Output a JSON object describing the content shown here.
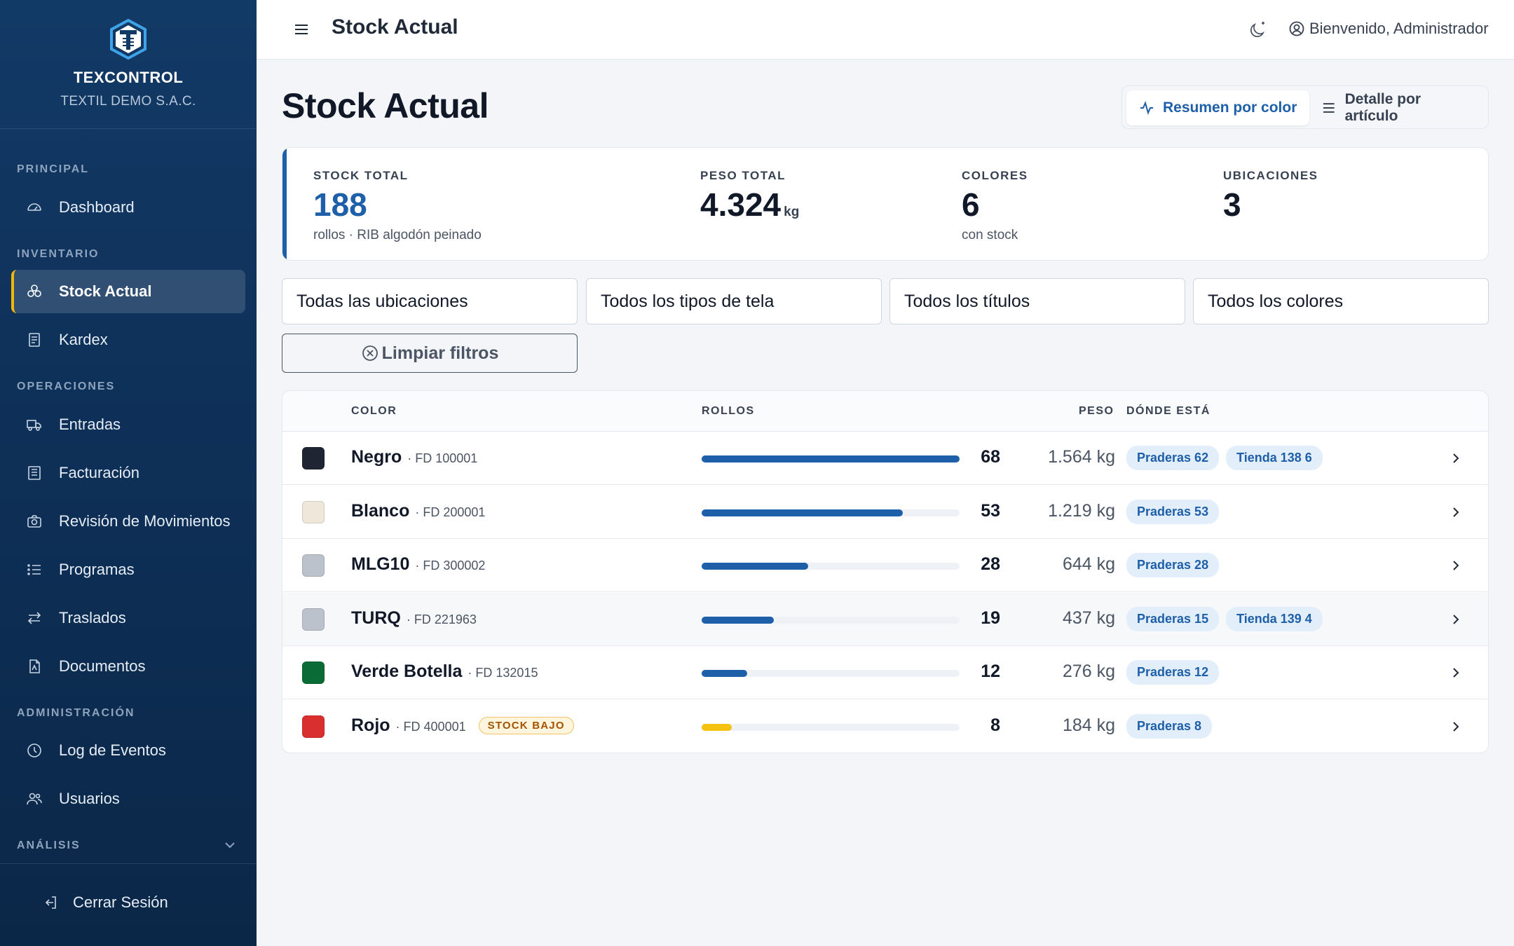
{
  "brand": {
    "name": "TEXCONTROL",
    "company": "TEXTIL DEMO S.A.C."
  },
  "sidebar": {
    "sections": {
      "principal": "PRINCIPAL",
      "inventario": "INVENTARIO",
      "operaciones": "OPERACIONES",
      "administracion": "ADMINISTRACIÓN",
      "analisis": "ANÁLISIS"
    },
    "items": {
      "dashboard": "Dashboard",
      "stock_actual": "Stock Actual",
      "kardex": "Kardex",
      "entradas": "Entradas",
      "facturacion": "Facturación",
      "revision": "Revisión de Movimientos",
      "programas": "Programas",
      "traslados": "Traslados",
      "documentos": "Documentos",
      "log": "Log de Eventos",
      "usuarios": "Usuarios"
    },
    "logout": "Cerrar Sesión"
  },
  "header": {
    "title": "Stock Actual",
    "welcome": "Bienvenido, Administrador"
  },
  "main": {
    "title": "Stock Actual",
    "view_toggle": {
      "summary": "Resumen por color",
      "detail": "Detalle por artículo",
      "active": "summary"
    },
    "stats": {
      "stock_total": {
        "label": "STOCK TOTAL",
        "value": "188",
        "sub": "rollos · RIB algodón peinado"
      },
      "peso_total": {
        "label": "PESO TOTAL",
        "value": "4.324",
        "unit": "kg"
      },
      "colores": {
        "label": "COLORES",
        "value": "6",
        "sub": "con stock"
      },
      "ubicaciones": {
        "label": "UBICACIONES",
        "value": "3"
      }
    },
    "filters": {
      "ubicaciones": "Todas las ubicaciones",
      "tipos": "Todos los tipos de tela",
      "titulos": "Todos los títulos",
      "colores": "Todos los colores",
      "clear": "Limpiar filtros"
    },
    "table": {
      "headers": {
        "color": "COLOR",
        "rollos": "ROLLOS",
        "peso": "PESO",
        "donde": "DÓNDE ESTÁ"
      },
      "max_rollos": 68,
      "rows": [
        {
          "name": "Negro",
          "code": "· FD 100001",
          "swatch": "#1f2533",
          "rollos": "68",
          "rollos_num": 68,
          "peso": "1.564 kg",
          "locations": [
            "Praderas 62",
            "Tienda 138 6"
          ],
          "badge": ""
        },
        {
          "name": "Blanco",
          "code": "· FD 200001",
          "swatch": "#efe8da",
          "rollos": "53",
          "rollos_num": 53,
          "peso": "1.219 kg",
          "locations": [
            "Praderas 53"
          ],
          "badge": ""
        },
        {
          "name": "MLG10",
          "code": "· FD 300002",
          "swatch": "#bcc2cc",
          "rollos": "28",
          "rollos_num": 28,
          "peso": "644 kg",
          "locations": [
            "Praderas 28"
          ],
          "badge": ""
        },
        {
          "name": "TURQ",
          "code": "· FD 221963",
          "swatch": "#bcc2cc",
          "rollos": "19",
          "rollos_num": 19,
          "peso": "437 kg",
          "locations": [
            "Praderas 15",
            "Tienda 139 4"
          ],
          "badge": ""
        },
        {
          "name": "Verde Botella",
          "code": "· FD 132015",
          "swatch": "#0b6b35",
          "rollos": "12",
          "rollos_num": 12,
          "peso": "276 kg",
          "locations": [
            "Praderas 12"
          ],
          "badge": ""
        },
        {
          "name": "Rojo",
          "code": "· FD 400001",
          "swatch": "#d92f2f",
          "rollos": "8",
          "rollos_num": 8,
          "peso": "184 kg",
          "locations": [
            "Praderas 8"
          ],
          "badge": "STOCK BAJO"
        }
      ]
    }
  },
  "colors": {
    "accent": "#1d5fa8",
    "warning": "#f5c211",
    "sidebar": "#0e3058"
  },
  "icons": {
    "logo": "texcontrol-logo-icon",
    "menu": "hamburger-icon",
    "theme": "moon-icon",
    "user": "user-circle-icon"
  }
}
